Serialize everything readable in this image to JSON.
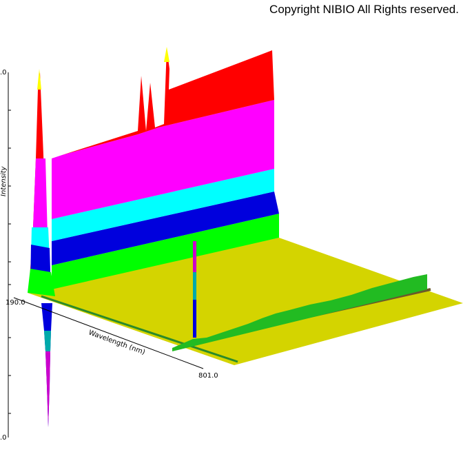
{
  "header": {
    "copyright": "Copyright NIBIO All Rights reserved."
  },
  "axes": {
    "z_label": "Intensity",
    "x_label": "Wavelength (nm)",
    "x_start": "190.0",
    "x_end": "801.0",
    "z_top": ".0",
    "z_bottom": ".0"
  }
}
